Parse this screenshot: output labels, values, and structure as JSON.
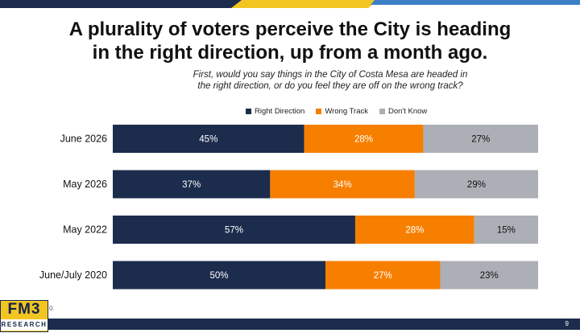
{
  "slide": {
    "title_line1": "A plurality of voters perceive the City is heading",
    "title_line2": "in the right direction, up from a month ago.",
    "question_line1": "First, would you say things in the City of Costa Mesa are headed in",
    "question_line2": "the right direction, or do you feel they are off on the wrong track?",
    "footnote_label": "Q.",
    "page_number": "9",
    "logo_main": "FM3",
    "logo_sub": "RESEARCH"
  },
  "colors": {
    "right_direction": "#1c2c4c",
    "wrong_track": "#f77f00",
    "dont_know": "#adafb6",
    "band_navy": "#1c2c4c",
    "band_gold": "#f3c521",
    "band_blue": "#3d7fc7"
  },
  "chart_data": {
    "type": "bar",
    "orientation": "horizontal",
    "stacked": true,
    "categories": [
      "June 2026",
      "May 2026",
      "May 2022",
      "June/July 2020"
    ],
    "series": [
      {
        "name": "Right Direction",
        "values": [
          45,
          37,
          57,
          50
        ],
        "labels": [
          "45%",
          "37%",
          "57%",
          "50%"
        ]
      },
      {
        "name": "Wrong Track",
        "values": [
          28,
          34,
          28,
          27
        ],
        "labels": [
          "28%",
          "34%",
          "28%",
          "27%"
        ]
      },
      {
        "name": "Don't Know",
        "values": [
          27,
          29,
          15,
          23
        ],
        "labels": [
          "27%",
          "29%",
          "15%",
          "23%"
        ]
      }
    ],
    "legend_position": "top",
    "grid": false
  }
}
